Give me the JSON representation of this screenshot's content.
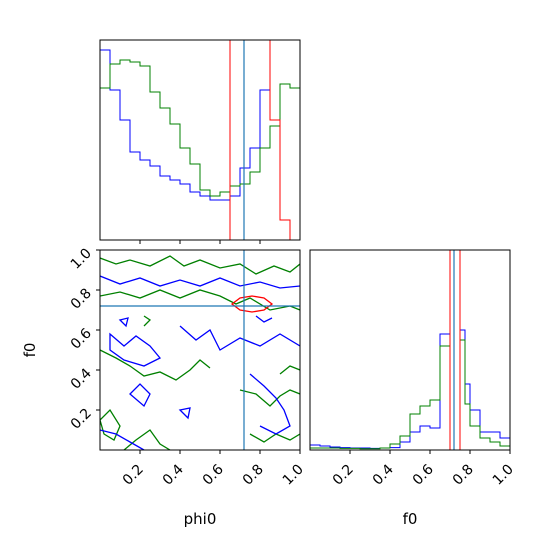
{
  "chart_data": {
    "type": "corner",
    "parameters": [
      "phi0",
      "f0"
    ],
    "truth": {
      "phi0": 0.72,
      "f0": 0.72
    },
    "colors": {
      "blue": "#0000ff",
      "green": "#008000",
      "red": "#ff0000",
      "truth": "#1f77b4"
    },
    "panels": [
      {
        "id": "hist-phi0",
        "type": "step-histogram",
        "x_range": [
          0,
          1
        ],
        "bin_edges": [
          0.0,
          0.05,
          0.1,
          0.15,
          0.2,
          0.25,
          0.3,
          0.35,
          0.4,
          0.45,
          0.5,
          0.55,
          0.6,
          0.65,
          0.7,
          0.75,
          0.8,
          0.85,
          0.9,
          0.95,
          1.0
        ],
        "series": [
          {
            "color": "blue",
            "values": [
              0.95,
              0.75,
              0.6,
              0.44,
              0.4,
              0.37,
              0.32,
              0.3,
              0.28,
              0.24,
              0.22,
              0.2,
              0.2,
              0.22,
              0.36,
              0.46,
              0.75,
              1.0,
              1.05,
              1.05
            ]
          },
          {
            "color": "green",
            "values": [
              0.76,
              0.88,
              0.9,
              0.89,
              0.87,
              0.74,
              0.66,
              0.58,
              0.46,
              0.38,
              0.25,
              0.22,
              0.24,
              0.27,
              0.28,
              0.34,
              0.46,
              0.57,
              0.78,
              0.76
            ]
          },
          {
            "color": "red",
            "values": [
              0,
              0,
              0,
              0,
              0,
              0,
              0,
              0,
              0,
              0,
              0,
              0,
              0,
              1.3,
              1.3,
              1.3,
              1.3,
              0.6,
              0.1,
              0
            ]
          }
        ],
        "vlines": [
          0.72
        ]
      },
      {
        "id": "contour-phi0-f0",
        "type": "contour",
        "x_range": [
          0,
          1
        ],
        "y_range": [
          0,
          1
        ],
        "x_ticks": [
          "0.2",
          "0.4",
          "0.6",
          "0.8",
          "1.0"
        ],
        "y_ticks": [
          "0.2",
          "0.4",
          "0.6",
          "0.8",
          "1.0"
        ],
        "xlabel": "phi0",
        "ylabel": "f0",
        "hline": 0.72,
        "vline": 0.72
      },
      {
        "id": "hist-f0",
        "type": "step-histogram",
        "x_range": [
          0,
          1
        ],
        "x_ticks": [
          "0.2",
          "0.4",
          "0.6",
          "0.8",
          "1.0"
        ],
        "xlabel": "f0",
        "bin_edges": [
          0.0,
          0.05,
          0.1,
          0.15,
          0.2,
          0.25,
          0.3,
          0.35,
          0.4,
          0.45,
          0.5,
          0.55,
          0.6,
          0.65,
          0.7,
          0.725,
          0.75,
          0.775,
          0.8,
          0.85,
          0.9,
          0.95,
          1.0
        ],
        "series": [
          {
            "color": "blue",
            "values": [
              0.025,
              0.02,
              0.015,
              0.012,
              0.01,
              0.01,
              0.008,
              0.01,
              0.012,
              0.04,
              0.09,
              0.12,
              0.11,
              0.58,
              1.1,
              1.1,
              0.6,
              0.33,
              0.2,
              0.09,
              0.09,
              0.06
            ]
          },
          {
            "color": "green",
            "values": [
              0.01,
              0.01,
              0.01,
              0.008,
              0.008,
              0.006,
              0.006,
              0.01,
              0.03,
              0.07,
              0.18,
              0.22,
              0.25,
              0.52,
              1.0,
              1.0,
              0.55,
              0.23,
              0.12,
              0.06,
              0.04,
              0.02
            ]
          },
          {
            "color": "red",
            "values": [
              0,
              0,
              0,
              0,
              0,
              0,
              0,
              0,
              0,
              0,
              0,
              0,
              0,
              0,
              1.2,
              1.2,
              0,
              0,
              0,
              0,
              0,
              0
            ]
          }
        ],
        "vlines": [
          0.72
        ]
      }
    ]
  }
}
